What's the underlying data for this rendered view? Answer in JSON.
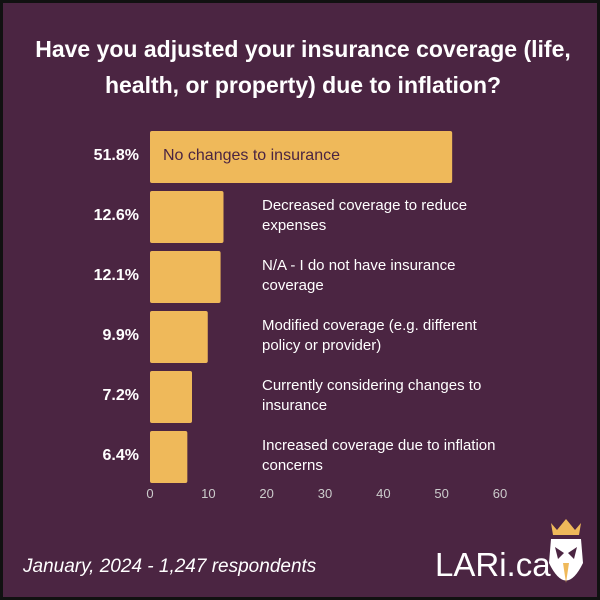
{
  "chart_data": {
    "type": "bar",
    "orientation": "horizontal",
    "title": "Have you adjusted your insurance coverage (life, health, or property) due to inflation?",
    "categories": [
      "No changes to insurance",
      "Decreased coverage to reduce expenses",
      "N/A - I do not have insurance coverage",
      "Modified coverage (e.g. different policy or provider)",
      "Currently considering changes to insurance",
      "Increased coverage due to inflation concerns"
    ],
    "values": [
      51.8,
      12.6,
      12.1,
      9.9,
      7.2,
      6.4
    ],
    "value_labels": [
      "51.8%",
      "12.6%",
      "12.1%",
      "9.9%",
      "7.2%",
      "6.4%"
    ],
    "color": "#efb95a",
    "xlim": [
      0,
      60
    ],
    "xticks": [
      0,
      10,
      20,
      30,
      40,
      50,
      60
    ],
    "grid": false,
    "footnote": "January, 2024 - 1,247 respondents",
    "brand": "LARi.ca"
  }
}
